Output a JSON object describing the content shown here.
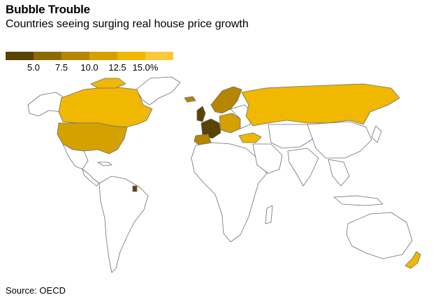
{
  "title": "Bubble Trouble",
  "subtitle": "Countries seeing surging real house price growth",
  "legend": {
    "colors": [
      "#5a4300",
      "#8c6a00",
      "#b58600",
      "#d4a100",
      "#f0b800",
      "#f9c93a"
    ],
    "ticks": [
      "5.0",
      "7.5",
      "10.0",
      "12.5",
      "15.0%"
    ]
  },
  "source": "Source: OECD",
  "map_colors": {
    "land": "#ffffff",
    "border": "#6e6e6e",
    "darkest": "#5a4300",
    "dark": "#8c6a00",
    "mid_dark": "#b58600",
    "mid": "#d4a100",
    "light": "#f0b800",
    "lightest": "#f9c93a"
  }
}
